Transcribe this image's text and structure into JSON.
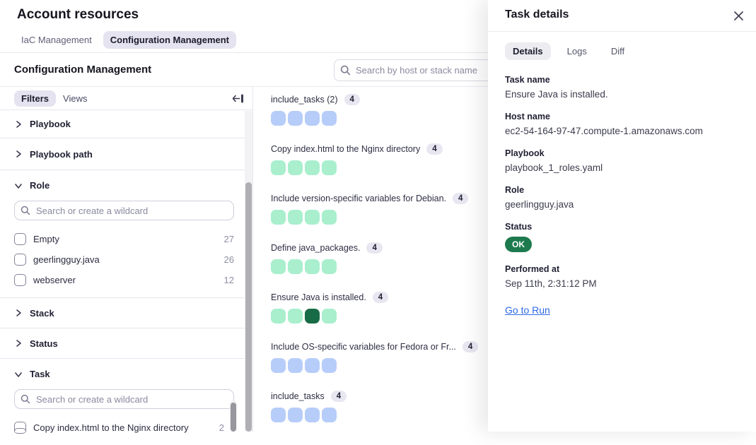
{
  "header": {
    "title": "Account resources",
    "tabs": [
      {
        "label": "IaC Management",
        "active": false
      },
      {
        "label": "Configuration Management",
        "active": true
      }
    ]
  },
  "section": {
    "title": "Configuration Management",
    "search_placeholder": "Search by host or stack name"
  },
  "sidebar": {
    "filters_tab": "Filters",
    "views_tab": "Views",
    "wildcard_placeholder": "Search or create a wildcard",
    "sections": [
      {
        "label": "Playbook",
        "expanded": false
      },
      {
        "label": "Playbook path",
        "expanded": false
      },
      {
        "label": "Role",
        "expanded": true
      },
      {
        "label": "Stack",
        "expanded": false
      },
      {
        "label": "Status",
        "expanded": false
      },
      {
        "label": "Task",
        "expanded": true
      }
    ],
    "role_options": [
      {
        "label": "Empty",
        "count": "27",
        "checked": false
      },
      {
        "label": "geerlingguy.java",
        "count": "26",
        "checked": false
      },
      {
        "label": "webserver",
        "count": "12",
        "checked": false
      }
    ],
    "task_options": [
      {
        "label": "Copy index.html to the Nginx directory",
        "count": "2",
        "checked": false
      }
    ]
  },
  "middle": {
    "groups": [
      {
        "title": "include_tasks (2)",
        "count": "4",
        "squares": [
          "blue",
          "blue",
          "blue",
          "blue"
        ]
      },
      {
        "title": "Copy index.html to the Nginx directory",
        "count": "4",
        "squares": [
          "green",
          "green",
          "green",
          "green"
        ]
      },
      {
        "title": "Include version-specific variables for Debian.",
        "count": "4",
        "squares": [
          "green",
          "green",
          "green",
          "green"
        ]
      },
      {
        "title": "Define java_packages.",
        "count": "4",
        "squares": [
          "green",
          "green",
          "green",
          "green"
        ]
      },
      {
        "title": "Ensure Java is installed.",
        "count": "4",
        "squares": [
          "green",
          "green",
          "dark-green",
          "green"
        ]
      },
      {
        "title": "Include OS-specific variables for Fedora or Fr...",
        "count": "4",
        "squares": [
          "blue",
          "blue",
          "blue",
          "blue"
        ]
      },
      {
        "title": "include_tasks",
        "count": "4",
        "squares": [
          "blue",
          "blue",
          "blue",
          "blue"
        ]
      }
    ]
  },
  "details_panel": {
    "title": "Task details",
    "tabs": [
      {
        "label": "Details",
        "active": true
      },
      {
        "label": "Logs",
        "active": false
      },
      {
        "label": "Diff",
        "active": false
      }
    ],
    "fields": [
      {
        "label": "Task name",
        "value": "Ensure Java is installed."
      },
      {
        "label": "Host name",
        "value": "ec2-54-164-97-47.compute-1.amazonaws.com"
      },
      {
        "label": "Playbook",
        "value": "playbook_1_roles.yaml"
      },
      {
        "label": "Role",
        "value": "geerlingguy.java"
      }
    ],
    "status": {
      "label": "Status",
      "badge": "OK"
    },
    "performed": {
      "label": "Performed at",
      "value": "Sep 11th, 2:31:12 PM"
    },
    "link": "Go to Run"
  },
  "colors": {
    "square_blue": "#b7cdf9",
    "square_green": "#a9efcd",
    "square_dark_green": "#186b47",
    "status_ok_badge": "#1d7a4e",
    "link_blue": "#2d6ae5",
    "active_pill": "#e4e3ef",
    "count_badge_bg": "#e8e7f1"
  }
}
